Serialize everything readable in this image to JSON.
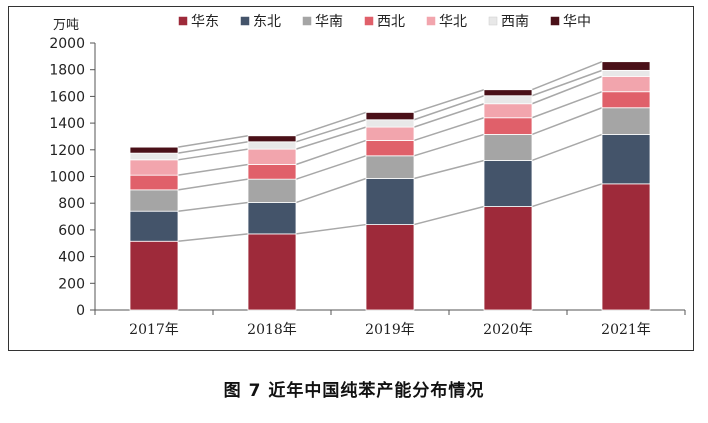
{
  "caption": "图 7   近年中国纯苯产能分布情况",
  "chart_data": {
    "type": "bar",
    "stacked": true,
    "categories": [
      "2017年",
      "2018年",
      "2019年",
      "2020年",
      "2021年"
    ],
    "series": [
      {
        "name": "华东",
        "color": "#9e2a3a",
        "values": [
          515,
          570,
          640,
          775,
          945
        ]
      },
      {
        "name": "东北",
        "color": "#44546a",
        "values": [
          225,
          235,
          345,
          345,
          370
        ]
      },
      {
        "name": "华南",
        "color": "#a5a5a5",
        "values": [
          160,
          175,
          170,
          195,
          200
        ]
      },
      {
        "name": "西北",
        "color": "#e0606a",
        "values": [
          110,
          110,
          115,
          125,
          120
        ]
      },
      {
        "name": "华北",
        "color": "#f2a5ad",
        "values": [
          115,
          115,
          100,
          105,
          115
        ]
      },
      {
        "name": "西南",
        "color": "#e8e8e8",
        "values": [
          50,
          55,
          55,
          60,
          45
        ]
      },
      {
        "name": "华中",
        "color": "#4a1018",
        "values": [
          45,
          45,
          55,
          45,
          65
        ]
      }
    ],
    "y_unit": "万吨",
    "ylim": [
      0,
      2000
    ],
    "yticks": [
      0,
      200,
      400,
      600,
      800,
      1000,
      1200,
      1400,
      1600,
      1800,
      2000
    ],
    "connector_lines": true,
    "legend_position": "top",
    "grid": false
  }
}
